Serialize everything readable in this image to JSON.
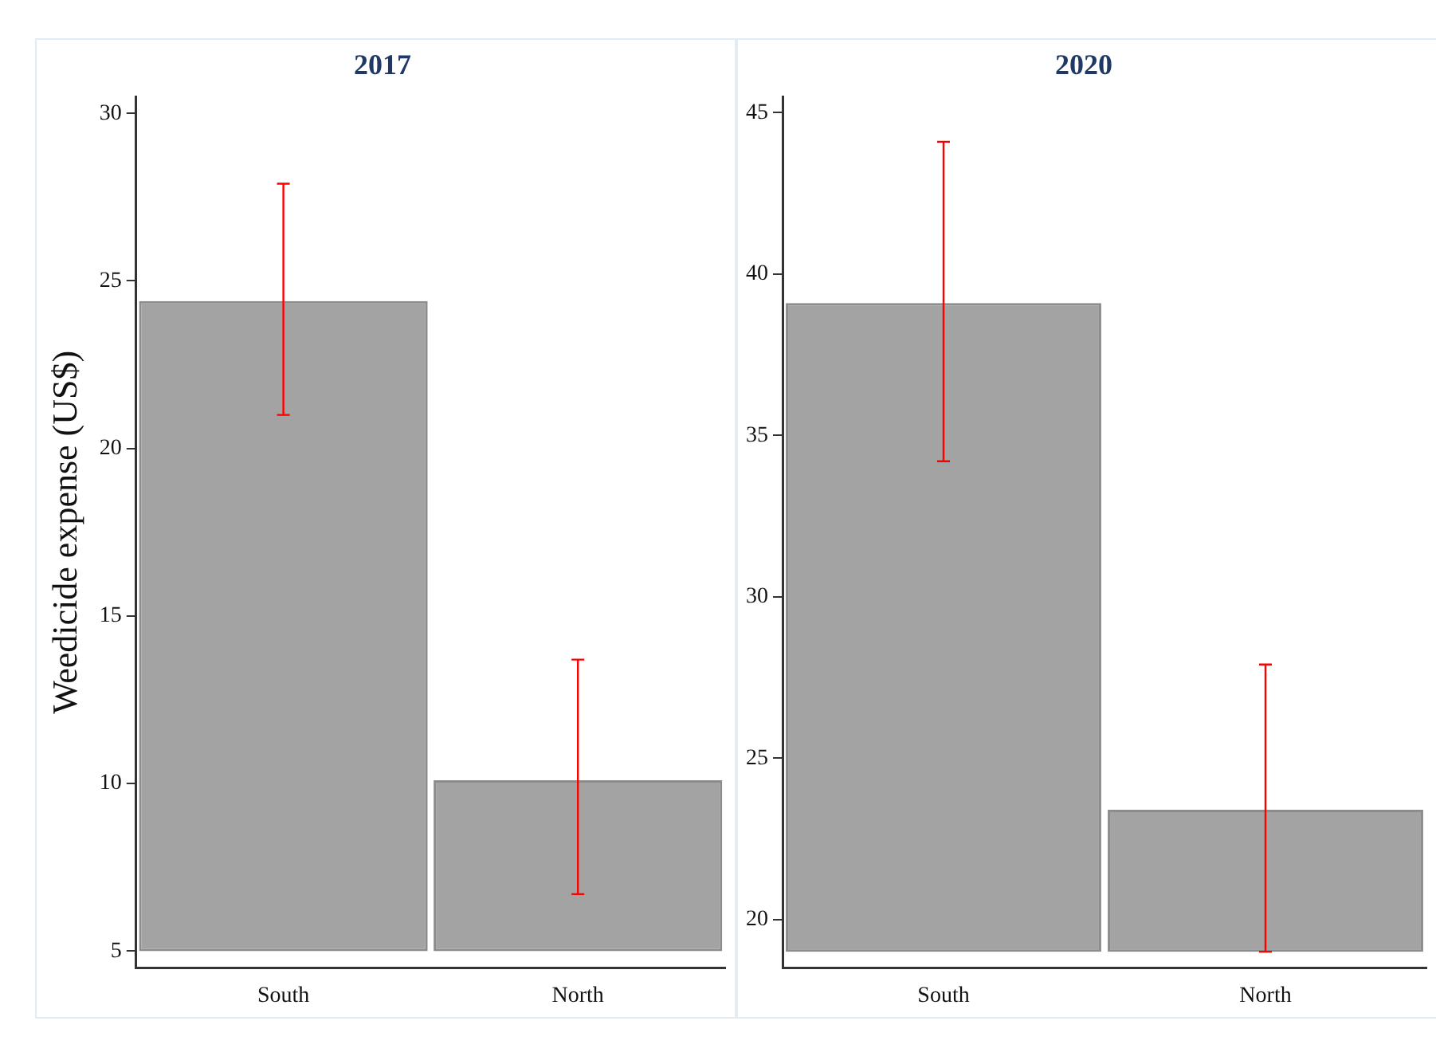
{
  "chart_data": [
    {
      "type": "bar",
      "title": "2017",
      "ylabel": "Weedicide expense (US$)",
      "categories": [
        "South",
        "North"
      ],
      "series": [
        {
          "color": "#a3a3a3",
          "values": [
            19.4,
            5.1
          ],
          "base": [
            5,
            5
          ],
          "errors": [
            [
              21.0,
              27.9
            ],
            [
              6.7,
              13.7
            ]
          ]
        }
      ],
      "ylim": [
        4.5,
        30.5
      ],
      "yticks": [
        5,
        10,
        15,
        20,
        25,
        30
      ],
      "grid": false,
      "legend": false
    },
    {
      "type": "bar",
      "title": "2020",
      "categories": [
        "South",
        "North"
      ],
      "series": [
        {
          "color": "#a3a3a3",
          "values": [
            20.1,
            4.4
          ],
          "base": [
            19,
            19
          ],
          "errors": [
            [
              34.2,
              44.1
            ],
            [
              19.0,
              27.9
            ]
          ]
        }
      ],
      "ylim": [
        18.5,
        45.5
      ],
      "yticks": [
        20,
        25,
        30,
        35,
        40,
        45
      ],
      "grid": false,
      "legend": false
    }
  ]
}
